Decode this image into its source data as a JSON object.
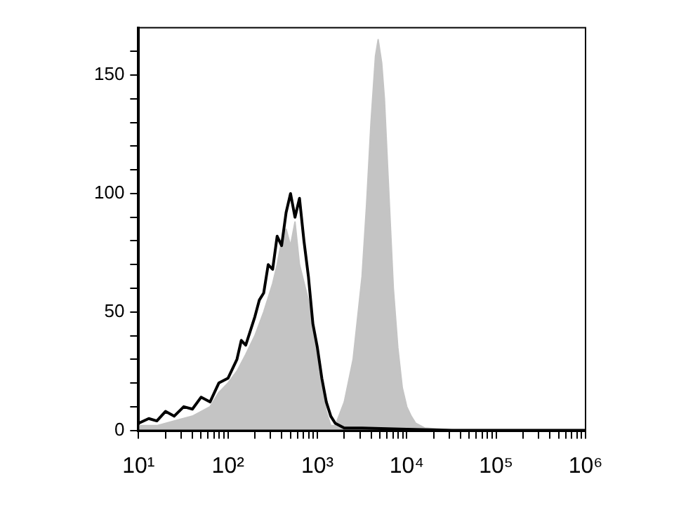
{
  "chart_data": {
    "type": "line",
    "log": "x",
    "xlim": [
      10,
      1000000
    ],
    "xticks": [
      {
        "value": 10,
        "label": "10¹"
      },
      {
        "value": 20,
        "label": null
      },
      {
        "value": 30,
        "label": null
      },
      {
        "value": 40,
        "label": null
      },
      {
        "value": 50,
        "label": null
      },
      {
        "value": 60,
        "label": null
      },
      {
        "value": 70,
        "label": null
      },
      {
        "value": 80,
        "label": null
      },
      {
        "value": 90,
        "label": null
      },
      {
        "value": 100,
        "label": "10²"
      },
      {
        "value": 200,
        "label": null
      },
      {
        "value": 300,
        "label": null
      },
      {
        "value": 400,
        "label": null
      },
      {
        "value": 500,
        "label": null
      },
      {
        "value": 600,
        "label": null
      },
      {
        "value": 700,
        "label": null
      },
      {
        "value": 800,
        "label": null
      },
      {
        "value": 900,
        "label": null
      },
      {
        "value": 1000,
        "label": "10³"
      },
      {
        "value": 2000,
        "label": null
      },
      {
        "value": 3000,
        "label": null
      },
      {
        "value": 4000,
        "label": null
      },
      {
        "value": 5000,
        "label": null
      },
      {
        "value": 6000,
        "label": null
      },
      {
        "value": 7000,
        "label": null
      },
      {
        "value": 8000,
        "label": null
      },
      {
        "value": 9000,
        "label": null
      },
      {
        "value": 10000,
        "label": "10⁴"
      },
      {
        "value": 20000,
        "label": null
      },
      {
        "value": 30000,
        "label": null
      },
      {
        "value": 40000,
        "label": null
      },
      {
        "value": 50000,
        "label": null
      },
      {
        "value": 60000,
        "label": null
      },
      {
        "value": 70000,
        "label": null
      },
      {
        "value": 80000,
        "label": null
      },
      {
        "value": 90000,
        "label": null
      },
      {
        "value": 100000,
        "label": "10⁵"
      },
      {
        "value": 200000,
        "label": null
      },
      {
        "value": 300000,
        "label": null
      },
      {
        "value": 400000,
        "label": null
      },
      {
        "value": 500000,
        "label": null
      },
      {
        "value": 600000,
        "label": null
      },
      {
        "value": 700000,
        "label": null
      },
      {
        "value": 800000,
        "label": null
      },
      {
        "value": 900000,
        "label": null
      },
      {
        "value": 1000000,
        "label": "10⁶"
      }
    ],
    "ylim": [
      0,
      170
    ],
    "yticks": [
      0,
      {
        "value": 10,
        "label": null
      },
      {
        "value": 20,
        "label": null
      },
      {
        "value": 30,
        "label": null
      },
      {
        "value": 40,
        "label": null
      },
      50,
      {
        "value": 60,
        "label": null
      },
      {
        "value": 70,
        "label": null
      },
      {
        "value": 80,
        "label": null
      },
      {
        "value": 90,
        "label": null
      },
      100,
      {
        "value": 110,
        "label": null
      },
      {
        "value": 120,
        "label": null
      },
      {
        "value": 130,
        "label": null
      },
      {
        "value": 140,
        "label": null
      },
      150,
      {
        "value": 160,
        "label": null
      }
    ],
    "series": [
      {
        "type": "area",
        "color": "#c4c4c4",
        "x": [
          10,
          16,
          25,
          40,
          63,
          79,
          100,
          126,
          158,
          200,
          251,
          316,
          355,
          398,
          447,
          501,
          562,
          631,
          794,
          1000,
          1122,
          1259,
          1413,
          1585,
          2000,
          2512,
          3162,
          3548,
          3981,
          4467,
          4786,
          5248,
          5623,
          6310,
          7079,
          7943,
          8913,
          10000,
          11220,
          12589,
          15849,
          25119,
          39811,
          1000000
        ],
        "values": [
          2,
          2,
          4,
          6,
          10,
          16,
          20,
          25,
          32,
          40,
          50,
          62,
          70,
          80,
          85,
          78,
          88,
          70,
          55,
          35,
          20,
          8,
          2,
          2,
          12,
          30,
          65,
          95,
          130,
          158,
          165,
          155,
          140,
          100,
          60,
          35,
          18,
          10,
          6,
          3,
          1,
          0.5,
          0,
          0
        ]
      },
      {
        "type": "line",
        "color": "#000000",
        "x": [
          10,
          13,
          16,
          20,
          25,
          32,
          40,
          50,
          63,
          79,
          100,
          126,
          141,
          158,
          200,
          224,
          251,
          282,
          316,
          355,
          398,
          447,
          501,
          562,
          631,
          708,
          794,
          891,
          1000,
          1122,
          1259,
          1413,
          1585,
          2000,
          3162,
          10000,
          31623,
          1000000
        ],
        "values": [
          3,
          5,
          4,
          8,
          6,
          10,
          9,
          14,
          12,
          20,
          22,
          30,
          38,
          36,
          48,
          55,
          58,
          70,
          68,
          82,
          78,
          92,
          100,
          90,
          98,
          80,
          65,
          45,
          35,
          22,
          12,
          6,
          3,
          1,
          1,
          0.5,
          0,
          0
        ]
      }
    ]
  }
}
